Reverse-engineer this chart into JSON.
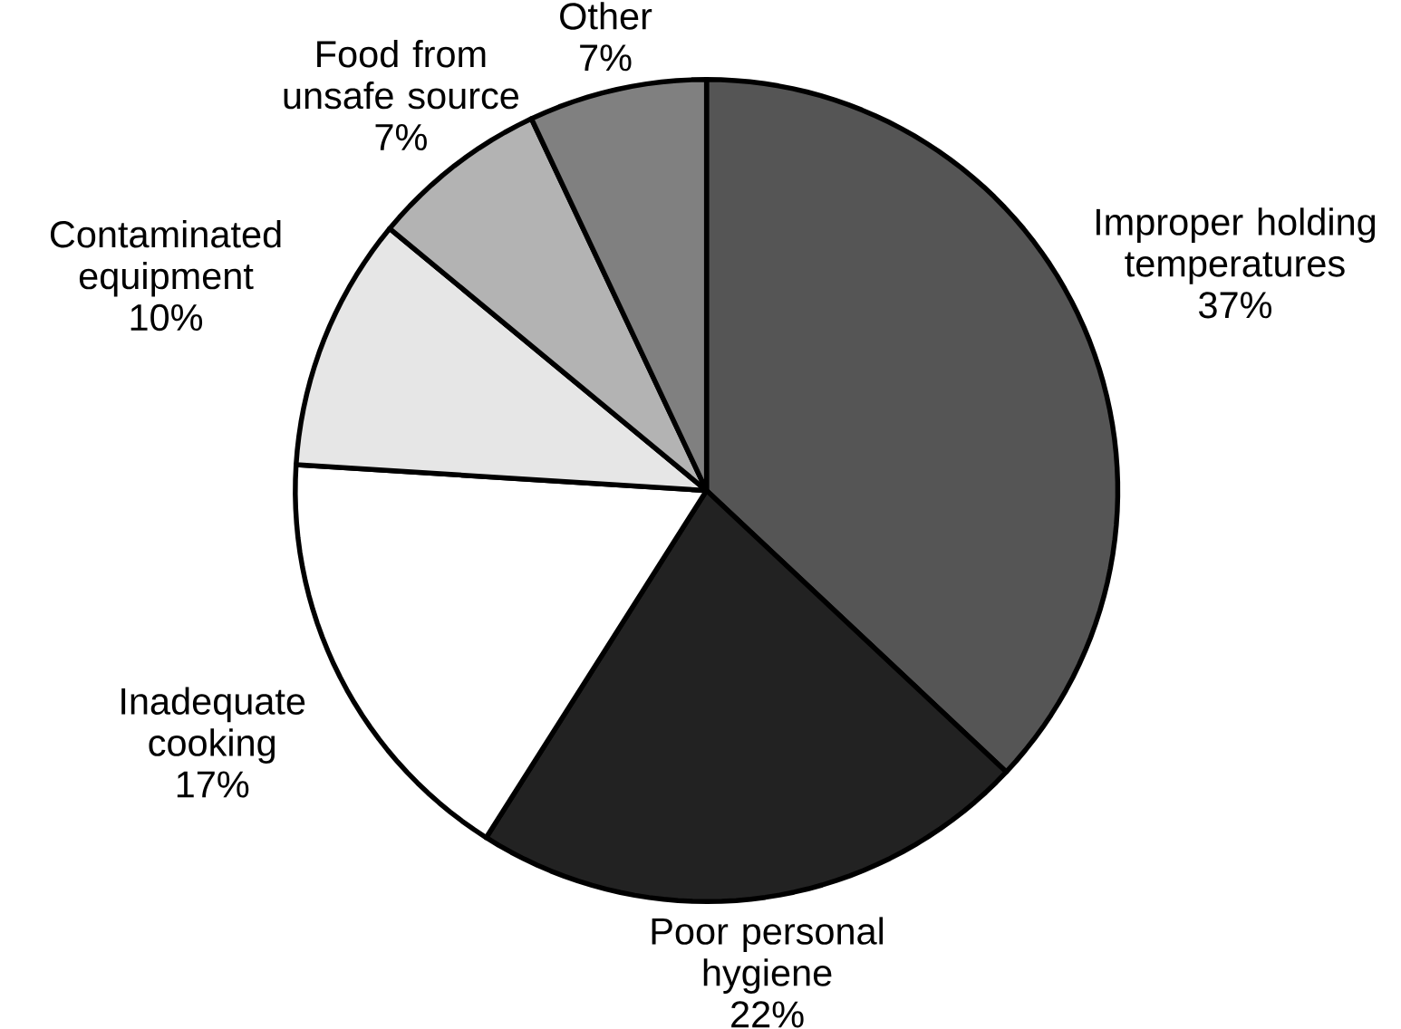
{
  "chart_data": {
    "type": "pie",
    "categories": [
      "Improper holding temperatures",
      "Poor personal hygiene",
      "Inadequate cooking",
      "Contaminated equipment",
      "Food from unsafe source",
      "Other"
    ],
    "values": [
      37,
      22,
      17,
      10,
      7,
      7
    ],
    "value_labels": [
      "37%",
      "22%",
      "17%",
      "10%",
      "7%",
      "7%"
    ],
    "colors": [
      "#555555",
      "#222222",
      "#ffffff",
      "#e6e6e6",
      "#b3b3b3",
      "#808080"
    ]
  }
}
